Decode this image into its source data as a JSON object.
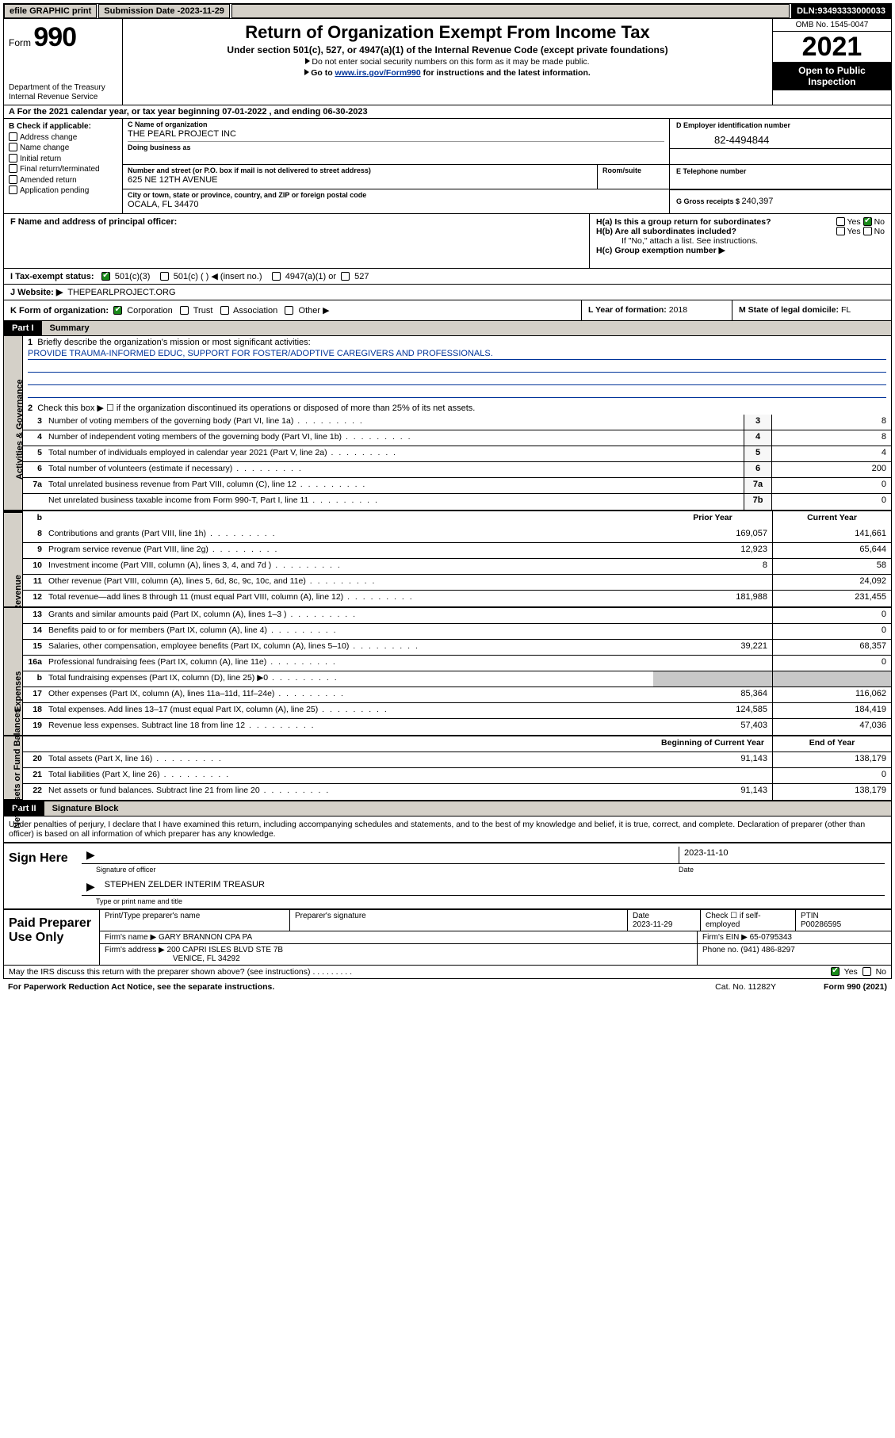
{
  "topbar": {
    "efile": "efile GRAPHIC print",
    "subdate_label": "Submission Date - ",
    "subdate": "2023-11-29",
    "dln_label": "DLN: ",
    "dln": "93493333000033"
  },
  "header": {
    "form_prefix": "Form ",
    "form_num": "990",
    "title": "Return of Organization Exempt From Income Tax",
    "sub1": "Under section 501(c), 527, or 4947(a)(1) of the Internal Revenue Code (except private foundations)",
    "sub2": "Do not enter social security numbers on this form as it may be made public.",
    "sub3": "Go to ",
    "sub3_link": "www.irs.gov/Form990",
    "sub3_tail": " for instructions and the latest information.",
    "dept": "Department of the Treasury",
    "irs": "Internal Revenue Service",
    "omb": "OMB No. 1545-0047",
    "year": "2021",
    "open": "Open to Public Inspection"
  },
  "rowA": {
    "prefix": "A For the 2021 calendar year, or tax year beginning ",
    "begin": "07-01-2022",
    "mid": "   , and ending ",
    "end": "06-30-2023"
  },
  "B": {
    "head": "B Check if applicable:",
    "items": [
      "Address change",
      "Name change",
      "Initial return",
      "Final return/terminated",
      "Amended return",
      "Application pending"
    ]
  },
  "C": {
    "name_label": "C Name of organization",
    "name": "THE PEARL PROJECT INC",
    "dba_label": "Doing business as",
    "street_label": "Number and street (or P.O. box if mail is not delivered to street address)",
    "room_label": "Room/suite",
    "street": "625 NE 12TH AVENUE",
    "city_label": "City or town, state or province, country, and ZIP or foreign postal code",
    "city": "OCALA, FL  34470"
  },
  "D": {
    "label": "D Employer identification number",
    "val": "82-4494844"
  },
  "E": {
    "label": "E Telephone number"
  },
  "G": {
    "label": "G Gross receipts $ ",
    "val": "240,397"
  },
  "F": {
    "label": "F  Name and address of principal officer:"
  },
  "H": {
    "a": "H(a)  Is this a group return for subordinates?",
    "b": "H(b)  Are all subordinates included?",
    "b_note": "If \"No,\" attach a list. See instructions.",
    "c": "H(c)  Group exemption number ▶",
    "yn_yes": "Yes",
    "yn_no": "No"
  },
  "I": {
    "label": "I    Tax-exempt status:",
    "o1": "501(c)(3)",
    "o2": "501(c) (  ) ◀ (insert no.)",
    "o3": "4947(a)(1) or",
    "o4": "527"
  },
  "J": {
    "label": "J    Website: ▶",
    "val": "THEPEARLPROJECT.ORG"
  },
  "K": {
    "label": "K Form of organization:",
    "o1": "Corporation",
    "o2": "Trust",
    "o3": "Association",
    "o4": "Other ▶"
  },
  "L": {
    "label": "L Year of formation: ",
    "val": "2018"
  },
  "M": {
    "label": "M State of legal domicile: ",
    "val": "FL"
  },
  "partI": {
    "hdr": "Part I",
    "title": "Summary",
    "side1": "Activities & Governance",
    "side2": "Revenue",
    "side3": "Expenses",
    "side4": "Net Assets or Fund Balances",
    "l1": "Briefly describe the organization's mission or most significant activities:",
    "l1_val": "PROVIDE TRAUMA-INFORMED EDUC, SUPPORT FOR FOSTER/ADOPTIVE CAREGIVERS AND PROFESSIONALS.",
    "l2": "Check this box ▶ ☐  if the organization discontinued its operations or disposed of more than 25% of its net assets.",
    "rows_a": [
      {
        "n": "3",
        "d": "Number of voting members of the governing body (Part VI, line 1a)",
        "ln": "3",
        "v": "8"
      },
      {
        "n": "4",
        "d": "Number of independent voting members of the governing body (Part VI, line 1b)",
        "ln": "4",
        "v": "8"
      },
      {
        "n": "5",
        "d": "Total number of individuals employed in calendar year 2021 (Part V, line 2a)",
        "ln": "5",
        "v": "4"
      },
      {
        "n": "6",
        "d": "Total number of volunteers (estimate if necessary)",
        "ln": "6",
        "v": "200"
      },
      {
        "n": "7a",
        "d": "Total unrelated business revenue from Part VIII, column (C), line 12",
        "ln": "7a",
        "v": "0"
      },
      {
        "n": "",
        "d": "Net unrelated business taxable income from Form 990-T, Part I, line 11",
        "ln": "7b",
        "v": "0"
      }
    ],
    "col_prior": "Prior Year",
    "col_curr": "Current Year",
    "rows_r": [
      {
        "n": "8",
        "d": "Contributions and grants (Part VIII, line 1h)",
        "p": "169,057",
        "c": "141,661"
      },
      {
        "n": "9",
        "d": "Program service revenue (Part VIII, line 2g)",
        "p": "12,923",
        "c": "65,644"
      },
      {
        "n": "10",
        "d": "Investment income (Part VIII, column (A), lines 3, 4, and 7d )",
        "p": "8",
        "c": "58"
      },
      {
        "n": "11",
        "d": "Other revenue (Part VIII, column (A), lines 5, 6d, 8c, 9c, 10c, and 11e)",
        "p": "",
        "c": "24,092"
      },
      {
        "n": "12",
        "d": "Total revenue—add lines 8 through 11 (must equal Part VIII, column (A), line 12)",
        "p": "181,988",
        "c": "231,455"
      }
    ],
    "rows_e": [
      {
        "n": "13",
        "d": "Grants and similar amounts paid (Part IX, column (A), lines 1–3 )",
        "p": "",
        "c": "0"
      },
      {
        "n": "14",
        "d": "Benefits paid to or for members (Part IX, column (A), line 4)",
        "p": "",
        "c": "0"
      },
      {
        "n": "15",
        "d": "Salaries, other compensation, employee benefits (Part IX, column (A), lines 5–10)",
        "p": "39,221",
        "c": "68,357"
      },
      {
        "n": "16a",
        "d": "Professional fundraising fees (Part IX, column (A), line 11e)",
        "p": "",
        "c": "0"
      },
      {
        "n": "b",
        "d": "Total fundraising expenses (Part IX, column (D), line 25) ▶0",
        "p": "—",
        "c": "—"
      },
      {
        "n": "17",
        "d": "Other expenses (Part IX, column (A), lines 11a–11d, 11f–24e)",
        "p": "85,364",
        "c": "116,062"
      },
      {
        "n": "18",
        "d": "Total expenses. Add lines 13–17 (must equal Part IX, column (A), line 25)",
        "p": "124,585",
        "c": "184,419"
      },
      {
        "n": "19",
        "d": "Revenue less expenses. Subtract line 18 from line 12",
        "p": "57,403",
        "c": "47,036"
      }
    ],
    "col_begin": "Beginning of Current Year",
    "col_end": "End of Year",
    "rows_n": [
      {
        "n": "20",
        "d": "Total assets (Part X, line 16)",
        "p": "91,143",
        "c": "138,179"
      },
      {
        "n": "21",
        "d": "Total liabilities (Part X, line 26)",
        "p": "",
        "c": "0"
      },
      {
        "n": "22",
        "d": "Net assets or fund balances. Subtract line 21 from line 20",
        "p": "91,143",
        "c": "138,179"
      }
    ]
  },
  "partII": {
    "hdr": "Part II",
    "title": "Signature Block",
    "penal": "Under penalties of perjury, I declare that I have examined this return, including accompanying schedules and statements, and to the best of my knowledge and belief, it is true, correct, and complete. Declaration of preparer (other than officer) is based on all information of which preparer has any knowledge.",
    "sign_here": "Sign Here",
    "sig_of": "Signature of officer",
    "date_lbl": "Date",
    "date": "2023-11-10",
    "name": "STEPHEN ZELDER  INTERIM TREASUR",
    "name_lbl": "Type or print name and title",
    "paid": "Paid Preparer Use Only",
    "p_name_lbl": "Print/Type preparer's name",
    "p_sig_lbl": "Preparer's signature",
    "p_date_lbl": "Date",
    "p_date": "2023-11-29",
    "p_self": "Check ☐ if self-employed",
    "ptin_lbl": "PTIN",
    "ptin": "P00286595",
    "firm_name_lbl": "Firm's name    ▶",
    "firm_name": "GARY BRANNON CPA PA",
    "firm_ein_lbl": "Firm's EIN ▶",
    "firm_ein": "65-0795343",
    "firm_addr_lbl": "Firm's address ▶",
    "firm_addr1": "200 CAPRI ISLES BLVD STE 7B",
    "firm_addr2": "VENICE, FL  34292",
    "phone_lbl": "Phone no. ",
    "phone": "(941) 486-8297",
    "discuss": "May the IRS discuss this return with the preparer shown above? (see instructions)"
  },
  "footer": {
    "line1": "For Paperwork Reduction Act Notice, see the separate instructions.",
    "cat": "Cat. No. 11282Y",
    "form": "Form 990 (2021)"
  }
}
